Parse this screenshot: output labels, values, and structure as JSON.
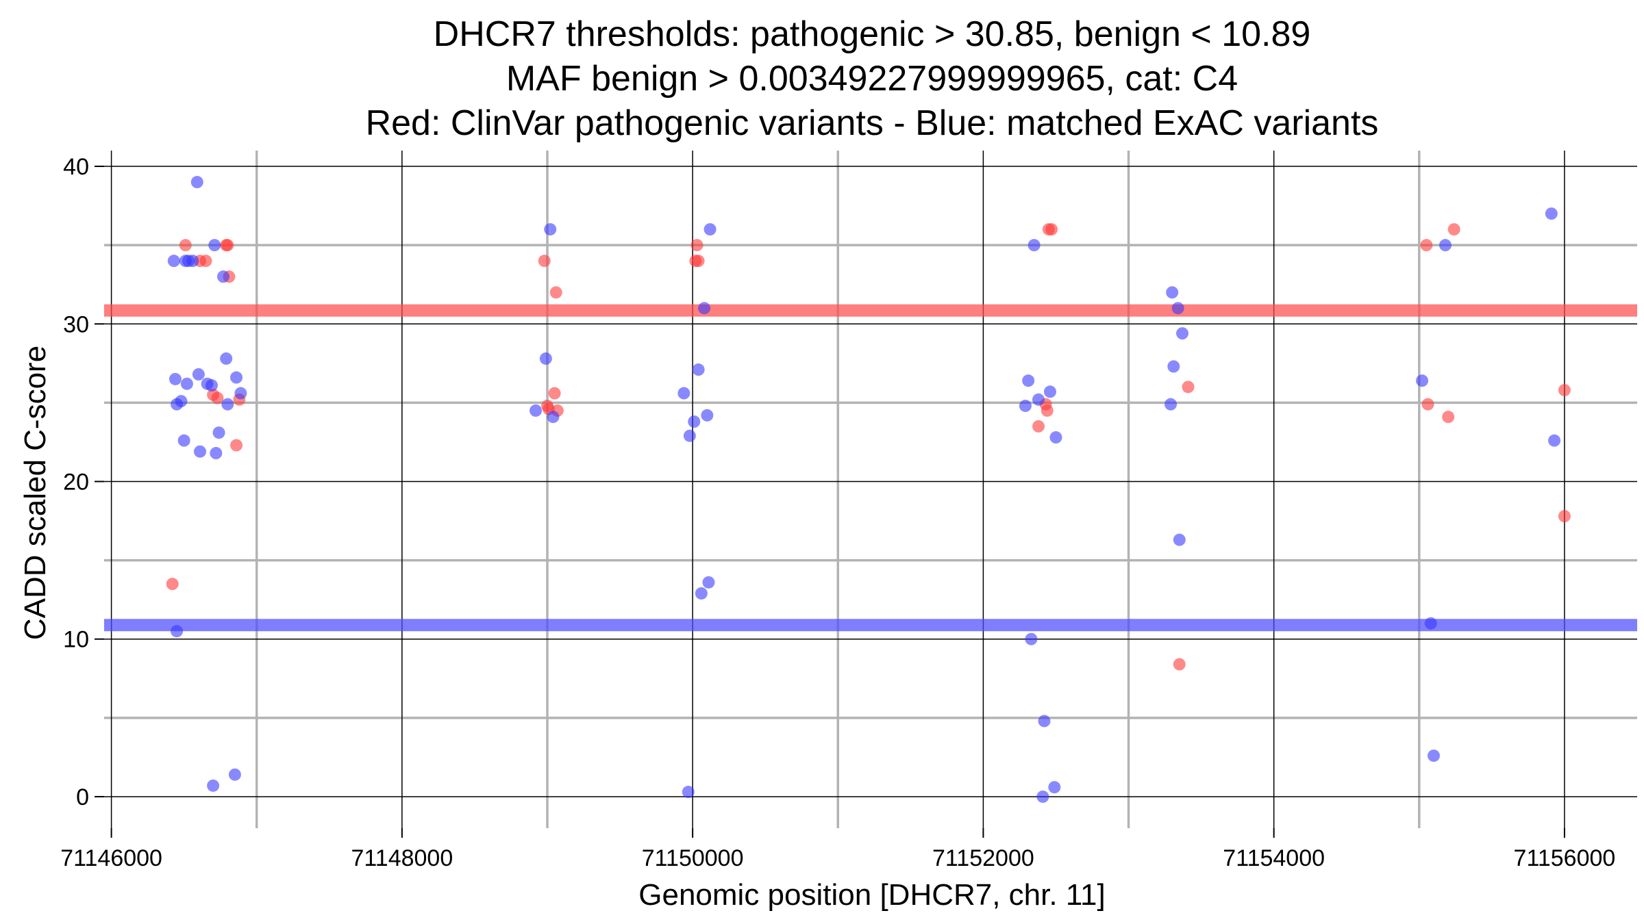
{
  "chart_data": {
    "type": "scatter",
    "title_lines": [
      "DHCR7 thresholds: pathogenic > 30.85, benign < 10.89",
      "MAF benign > 0.00349227999999965, cat: C4",
      "Red: ClinVar pathogenic variants - Blue: matched ExAC variants"
    ],
    "xlabel": "Genomic position [DHCR7, chr. 11]",
    "ylabel": "CADD scaled C-score",
    "xlim": [
      71145950,
      71156500
    ],
    "ylim": [
      -2,
      41
    ],
    "x_major_ticks": [
      71146000,
      71148000,
      71150000,
      71152000,
      71154000,
      71156000
    ],
    "x_tick_labels": [
      "71146000",
      "71148000",
      "71150000",
      "71152000",
      "71154000",
      "71156000"
    ],
    "x_minor_ticks": [
      71147000,
      71149000,
      71151000,
      71153000,
      71155000
    ],
    "y_major_ticks": [
      0,
      10,
      20,
      30,
      40
    ],
    "y_tick_labels": [
      "0",
      "10",
      "20",
      "30",
      "40"
    ],
    "y_minor_ticks": [
      5,
      15,
      25,
      35
    ],
    "grid": true,
    "thresholds": [
      {
        "name": "pathogenic",
        "value": 30.85,
        "color": "#ff4c4c"
      },
      {
        "name": "benign",
        "value": 10.89,
        "color": "#4c4cff"
      }
    ],
    "series": [
      {
        "name": "ClinVar pathogenic",
        "color": "#ff3333",
        "points": [
          [
            71146420,
            13.5
          ],
          [
            71146510,
            35
          ],
          [
            71146610,
            34
          ],
          [
            71146650,
            34
          ],
          [
            71146700,
            25.5
          ],
          [
            71146730,
            25.3
          ],
          [
            71146790,
            35
          ],
          [
            71146800,
            35
          ],
          [
            71146810,
            33
          ],
          [
            71146860,
            22.3
          ],
          [
            71146880,
            25.2
          ],
          [
            71148980,
            34
          ],
          [
            71149000,
            24.8
          ],
          [
            71149010,
            24.6
          ],
          [
            71149050,
            25.6
          ],
          [
            71149060,
            32
          ],
          [
            71149070,
            24.5
          ],
          [
            71150020,
            34
          ],
          [
            71150030,
            35
          ],
          [
            71150040,
            34
          ],
          [
            71152380,
            23.5
          ],
          [
            71152430,
            24.9
          ],
          [
            71152440,
            24.5
          ],
          [
            71152450,
            36
          ],
          [
            71152470,
            36
          ],
          [
            71153350,
            8.4
          ],
          [
            71153410,
            26
          ],
          [
            71155050,
            35
          ],
          [
            71155060,
            24.9
          ],
          [
            71155200,
            24.1
          ],
          [
            71155240,
            36
          ],
          [
            71156000,
            25.8
          ],
          [
            71156000,
            17.8
          ]
        ]
      },
      {
        "name": "ExAC matched",
        "color": "#3333ff",
        "points": [
          [
            71146430,
            34
          ],
          [
            71146440,
            26.5
          ],
          [
            71146450,
            24.9
          ],
          [
            71146450,
            10.5
          ],
          [
            71146480,
            25.1
          ],
          [
            71146500,
            22.6
          ],
          [
            71146510,
            34
          ],
          [
            71146520,
            26.2
          ],
          [
            71146530,
            34
          ],
          [
            71146560,
            34
          ],
          [
            71146590,
            39
          ],
          [
            71146600,
            26.8
          ],
          [
            71146610,
            21.9
          ],
          [
            71146660,
            26.2
          ],
          [
            71146690,
            26.1
          ],
          [
            71146700,
            0.7
          ],
          [
            71146710,
            35
          ],
          [
            71146720,
            21.8
          ],
          [
            71146740,
            23.1
          ],
          [
            71146770,
            33
          ],
          [
            71146790,
            27.8
          ],
          [
            71146800,
            24.9
          ],
          [
            71146850,
            1.4
          ],
          [
            71146860,
            26.6
          ],
          [
            71146890,
            25.6
          ],
          [
            71148920,
            24.5
          ],
          [
            71148990,
            27.8
          ],
          [
            71149020,
            36
          ],
          [
            71149040,
            24.1
          ],
          [
            71149940,
            25.6
          ],
          [
            71149970,
            0.3
          ],
          [
            71149980,
            22.9
          ],
          [
            71150010,
            23.8
          ],
          [
            71150040,
            27.1
          ],
          [
            71150060,
            12.9
          ],
          [
            71150080,
            31
          ],
          [
            71150100,
            24.2
          ],
          [
            71150110,
            13.6
          ],
          [
            71150120,
            36
          ],
          [
            71152290,
            24.8
          ],
          [
            71152310,
            26.4
          ],
          [
            71152330,
            10
          ],
          [
            71152350,
            35
          ],
          [
            71152380,
            25.2
          ],
          [
            71152410,
            0
          ],
          [
            71152420,
            4.8
          ],
          [
            71152460,
            25.7
          ],
          [
            71152490,
            0.6
          ],
          [
            71152500,
            22.8
          ],
          [
            71153290,
            24.9
          ],
          [
            71153300,
            32
          ],
          [
            71153310,
            27.3
          ],
          [
            71153340,
            31
          ],
          [
            71153350,
            16.3
          ],
          [
            71153370,
            29.4
          ],
          [
            71155020,
            26.4
          ],
          [
            71155080,
            11
          ],
          [
            71155100,
            2.6
          ],
          [
            71155180,
            35
          ],
          [
            71155910,
            37
          ],
          [
            71155930,
            22.6
          ]
        ]
      }
    ]
  }
}
